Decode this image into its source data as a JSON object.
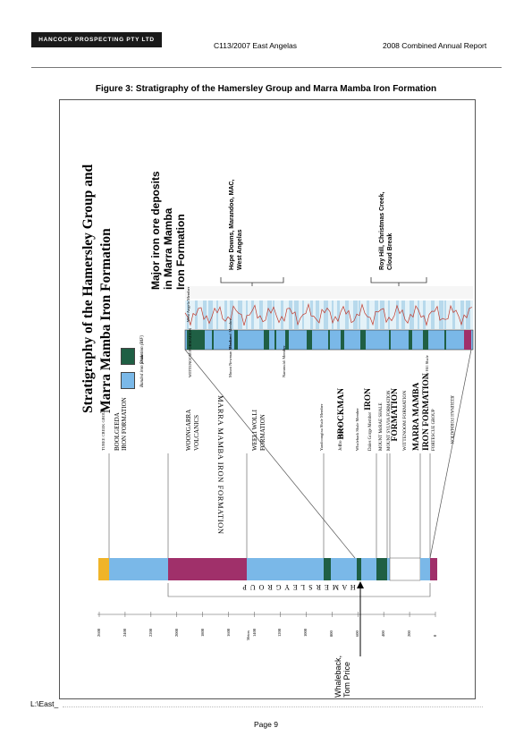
{
  "header": {
    "logo_text": "HANCOCK PROSPECTING PTY LTD",
    "center": "C113/2007 East Angelas",
    "right": "2008 Combined Annual Report"
  },
  "caption": "Figure 3:  Stratigraphy of the Hamersley Group and Marra Mamba Iron Formation",
  "figure": {
    "title_line1": "Stratigraphy of the Hamersley Group and",
    "title_line2": "Marra Mamba Iron Formation",
    "major_line1": "Major iron ore deposits",
    "major_line2": "in Marra Mamba",
    "major_line3": "Iron Formation",
    "deposit_a_line1": "Hope Downs, Marandoo, MAC,",
    "deposit_a_line2": "West Angelas",
    "deposit_b_line1": "Roy Hill, Christmas Creek,",
    "deposit_b_line2": "Cloud Break",
    "legend_bif": "Banded iron formation (BIF)",
    "legend_shale": "Shale",
    "whaleback_line1": "Whaleback,",
    "whaleback_line2": "Tom Price",
    "hamersley_group": "H A M E R S L E Y   G R O U P",
    "metres_label": "Metres",
    "axis_ticks": [
      "2600",
      "2400",
      "2200",
      "2000",
      "1800",
      "1600",
      "1400",
      "1200",
      "1000",
      "800",
      "600",
      "400",
      "200",
      "0"
    ],
    "units": [
      "TUREE CREEK GROUP",
      "BOOLGEEDA",
      "IRON FORMATION",
      "WOONGARRA",
      "VOLCANICS",
      "WEELI WOLLI",
      "FORMATION",
      "Yandicoogina Shale Member",
      "Joffre Member",
      "Whaleback Shale Member",
      "Dales Gorge Member",
      "MOUNT McRAE SHALE",
      "MOUNT SYLVIA FORMATION",
      "WITTENOOM FORMATION",
      "FORTESCUE GROUP"
    ],
    "brockman": [
      "BROCKMAN",
      "IRON",
      "FORMATION"
    ],
    "marra": [
      "MARRA MAMBA",
      "IRON FORMATION"
    ],
    "marra_detail_title": "MARRA MAMBA IRON FORMATION",
    "marra_members": [
      "West Angela Member",
      "Mount Newman Member",
      "MacLeod Member",
      "Nammuldi Member"
    ],
    "wittenoom_short": "WITTENOOM FORMATION",
    "jeerinah": "JEERINAH FORMATION",
    "roy_hill": "Roy Hill Shale"
  },
  "footer": {
    "path": "L:\\East_",
    "page": "Page 9"
  },
  "colors": {
    "bif": "#7ab8e8",
    "shale": "#1f5f44",
    "volcanics": "#a0306a",
    "turee": "#f0b429"
  }
}
